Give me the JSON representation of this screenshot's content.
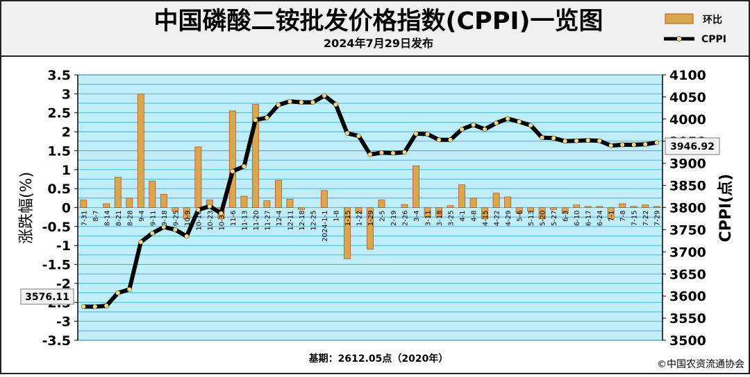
{
  "header": {
    "title": "中国磷酸二铵批发价格指数(CPPI)一览图",
    "subtitle": "2024年7月29日发布"
  },
  "legend": {
    "bar_label": "环比",
    "line_label": "CPPI"
  },
  "footer": {
    "base_note": "基期：2612.05点（2020年）",
    "copyright": "©中国农资流通协会"
  },
  "colors": {
    "bar_fill": "#d9a84e",
    "bar_edge": "#c0501f",
    "line": "#000000",
    "marker": "#f2d889",
    "plot_bg": "#bfeef8",
    "grid": "#2aa3c9",
    "header_bg": "#f0f0f0"
  },
  "chart_data": {
    "type": "bar+line",
    "categories": [
      "7-31",
      "8-7",
      "8-14",
      "8-21",
      "8-28",
      "9-4",
      "9-11",
      "9-18",
      "9-25",
      "10-9",
      "10-16",
      "10-23",
      "10-30",
      "11-6",
      "11-13",
      "11-20",
      "11-27",
      "12-4",
      "12-11",
      "12-18",
      "12-25",
      "2024-1-1",
      "1-8",
      "1-15",
      "1-22",
      "1-29",
      "2-5",
      "2-19",
      "2-26",
      "3-4",
      "3-11",
      "3-18",
      "3-25",
      "4-1",
      "4-8",
      "4-15",
      "4-22",
      "4-29",
      "5-6",
      "5-13",
      "5-20",
      "5-27",
      "6-3",
      "6-10",
      "6-17",
      "6-24",
      "7-1",
      "7-8",
      "7-15",
      "7-22",
      "7-29"
    ],
    "series": [
      {
        "name": "环比",
        "type": "bar",
        "axis": "left",
        "values": [
          0.2,
          0.0,
          0.1,
          0.8,
          0.25,
          3.0,
          0.7,
          0.35,
          -0.1,
          -0.3,
          1.6,
          0.2,
          -0.3,
          2.55,
          0.3,
          2.72,
          0.18,
          0.72,
          0.22,
          -0.05,
          0.0,
          0.45,
          0.0,
          -1.35,
          -0.15,
          -1.1,
          0.2,
          0.0,
          0.08,
          1.1,
          -0.25,
          -0.25,
          0.05,
          0.6,
          0.25,
          -0.3,
          0.38,
          0.28,
          -0.15,
          -0.1,
          -0.3,
          -0.05,
          -0.15,
          0.07,
          0.03,
          0.03,
          -0.3,
          0.1,
          0.03,
          0.07,
          0.03
        ]
      },
      {
        "name": "CPPI",
        "type": "line",
        "axis": "right",
        "values": [
          3576.11,
          3576,
          3578,
          3607,
          3615,
          3722,
          3742,
          3756,
          3750,
          3735,
          3795,
          3803,
          3787,
          3882,
          3893,
          3998,
          4003,
          4032,
          4040,
          4038,
          4038,
          4053,
          4033,
          3968,
          3962,
          3920,
          3924,
          3923,
          3925,
          3967,
          3966,
          3953,
          3953,
          3977,
          3987,
          3977,
          3991,
          4001,
          3994,
          3986,
          3958,
          3957,
          3950,
          3951,
          3952,
          3951,
          3940,
          3942,
          3942,
          3943,
          3946.92
        ]
      }
    ],
    "left_axis": {
      "label": "涨跌幅(%)",
      "min": -3.5,
      "max": 3.5,
      "step": 0.5,
      "ticks": [
        "-3.5",
        "-3",
        "-2.5",
        "-2",
        "-1.5",
        "-1",
        "-0.5",
        "0",
        "0.5",
        "1",
        "1.5",
        "2",
        "2.5",
        "3",
        "3.5"
      ]
    },
    "right_axis": {
      "label": "CPPI(点)",
      "min": 3500,
      "max": 4100,
      "step": 50,
      "ticks": [
        "3500",
        "3550",
        "3600",
        "3650",
        "3700",
        "3750",
        "3800",
        "3850",
        "3900",
        "3950",
        "4000",
        "4050",
        "4100"
      ]
    },
    "annotations": {
      "start_value": "3576.11",
      "end_value": "3946.92"
    },
    "grid": true,
    "legend_position": "top-right"
  }
}
